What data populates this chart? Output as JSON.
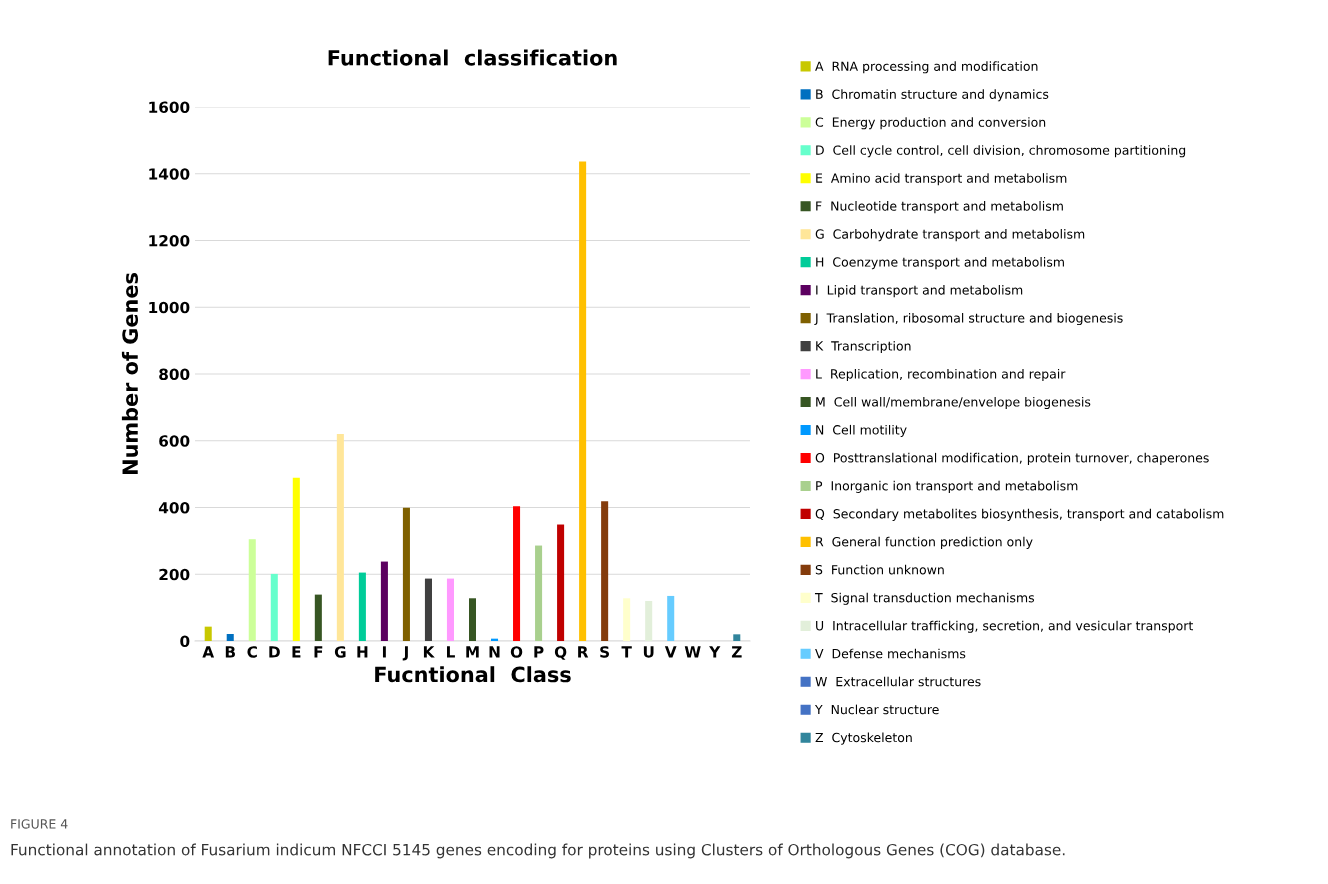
{
  "chart_data": {
    "type": "bar",
    "title": "Functional  classification",
    "xlabel": "Fucntional  Class",
    "ylabel": "Number of Genes",
    "categories": [
      "A",
      "B",
      "C",
      "D",
      "E",
      "F",
      "G",
      "H",
      "I",
      "J",
      "K",
      "L",
      "M",
      "N",
      "O",
      "P",
      "Q",
      "R",
      "S",
      "T",
      "U",
      "V",
      "W",
      "Y",
      "Z"
    ],
    "series": [
      {
        "name": "A  RNA processing and modification",
        "color": "#c8c800",
        "values": [
          43,
          null,
          null,
          null,
          null,
          null,
          null,
          null,
          null,
          null,
          null,
          null,
          null,
          null,
          null,
          null,
          null,
          null,
          null,
          null,
          null,
          null,
          null,
          null,
          null
        ]
      },
      {
        "name": "B  Chromatin structure and dynamics",
        "color": "#0070c0",
        "values": [
          null,
          21,
          null,
          null,
          null,
          null,
          null,
          null,
          null,
          null,
          null,
          null,
          null,
          null,
          null,
          null,
          null,
          null,
          null,
          null,
          null,
          null,
          null,
          null,
          null
        ]
      },
      {
        "name": "C  Energy production and conversion",
        "color": "#ccff99",
        "values": [
          null,
          null,
          305,
          null,
          null,
          null,
          null,
          null,
          null,
          null,
          null,
          null,
          null,
          null,
          null,
          null,
          null,
          null,
          null,
          null,
          null,
          null,
          null,
          null,
          null
        ]
      },
      {
        "name": "D  Cell cycle control, cell division, chromosome partitioning",
        "color": "#66ffcc",
        "values": [
          null,
          null,
          null,
          201,
          null,
          null,
          null,
          null,
          null,
          null,
          null,
          null,
          null,
          null,
          null,
          null,
          null,
          null,
          null,
          null,
          null,
          null,
          null,
          null,
          null
        ]
      },
      {
        "name": "E  Amino acid transport and metabolism",
        "color": "#ffff00",
        "values": [
          null,
          null,
          null,
          null,
          489,
          null,
          null,
          null,
          null,
          null,
          null,
          null,
          null,
          null,
          null,
          null,
          null,
          null,
          null,
          null,
          null,
          null,
          null,
          null,
          null
        ]
      },
      {
        "name": "F  Nucleotide transport and metabolism",
        "color": "#375623",
        "values": [
          null,
          null,
          null,
          null,
          null,
          139,
          null,
          null,
          null,
          null,
          null,
          null,
          null,
          null,
          null,
          null,
          null,
          null,
          null,
          null,
          null,
          null,
          null,
          null,
          null
        ]
      },
      {
        "name": "G  Carbohydrate transport and metabolism",
        "color": "#ffe699",
        "values": [
          null,
          null,
          null,
          null,
          null,
          null,
          620,
          null,
          null,
          null,
          null,
          null,
          null,
          null,
          null,
          null,
          null,
          null,
          null,
          null,
          null,
          null,
          null,
          null,
          null
        ]
      },
      {
        "name": "H  Coenzyme transport and metabolism",
        "color": "#00cc99",
        "values": [
          null,
          null,
          null,
          null,
          null,
          null,
          null,
          205,
          null,
          null,
          null,
          null,
          null,
          null,
          null,
          null,
          null,
          null,
          null,
          null,
          null,
          null,
          null,
          null,
          null
        ]
      },
      {
        "name": "I  Lipid transport and metabolism",
        "color": "#5c0060",
        "values": [
          null,
          null,
          null,
          null,
          null,
          null,
          null,
          null,
          238,
          null,
          null,
          null,
          null,
          null,
          null,
          null,
          null,
          null,
          null,
          null,
          null,
          null,
          null,
          null,
          null
        ]
      },
      {
        "name": "J  Translation, ribosomal structure and biogenesis",
        "color": "#7f6000",
        "values": [
          null,
          null,
          null,
          null,
          null,
          null,
          null,
          null,
          null,
          399,
          null,
          null,
          null,
          null,
          null,
          null,
          null,
          null,
          null,
          null,
          null,
          null,
          null,
          null,
          null
        ]
      },
      {
        "name": "K  Transcription",
        "color": "#404040",
        "values": [
          null,
          null,
          null,
          null,
          null,
          null,
          null,
          null,
          null,
          null,
          187,
          null,
          null,
          null,
          null,
          null,
          null,
          null,
          null,
          null,
          null,
          null,
          null,
          null,
          null
        ]
      },
      {
        "name": "L  Replication, recombination and repair",
        "color": "#ff99ff",
        "values": [
          null,
          null,
          null,
          null,
          null,
          null,
          null,
          null,
          null,
          null,
          null,
          187,
          null,
          null,
          null,
          null,
          null,
          null,
          null,
          null,
          null,
          null,
          null,
          null,
          null
        ]
      },
      {
        "name": "M  Cell wall/membrane/envelope biogenesis",
        "color": "#375623",
        "values": [
          null,
          null,
          null,
          null,
          null,
          null,
          null,
          null,
          null,
          null,
          null,
          null,
          128,
          null,
          null,
          null,
          null,
          null,
          null,
          null,
          null,
          null,
          null,
          null,
          null
        ]
      },
      {
        "name": "N  Cell motility",
        "color": "#0099ff",
        "values": [
          null,
          null,
          null,
          null,
          null,
          null,
          null,
          null,
          null,
          null,
          null,
          null,
          null,
          7,
          null,
          null,
          null,
          null,
          null,
          null,
          null,
          null,
          null,
          null,
          null
        ]
      },
      {
        "name": "O  Posttranslational modification, protein turnover, chaperones",
        "color": "#ff0000",
        "values": [
          null,
          null,
          null,
          null,
          null,
          null,
          null,
          null,
          null,
          null,
          null,
          null,
          null,
          null,
          404,
          null,
          null,
          null,
          null,
          null,
          null,
          null,
          null,
          null,
          null
        ]
      },
      {
        "name": "P  Inorganic ion transport and metabolism",
        "color": "#a9d08e",
        "values": [
          null,
          null,
          null,
          null,
          null,
          null,
          null,
          null,
          null,
          null,
          null,
          null,
          null,
          null,
          null,
          286,
          null,
          null,
          null,
          null,
          null,
          null,
          null,
          null,
          null
        ]
      },
      {
        "name": "Q  Secondary metabolites biosynthesis, transport and catabolism",
        "color": "#c00000",
        "values": [
          null,
          null,
          null,
          null,
          null,
          null,
          null,
          null,
          null,
          null,
          null,
          null,
          null,
          null,
          null,
          null,
          349,
          null,
          null,
          null,
          null,
          null,
          null,
          null,
          null
        ]
      },
      {
        "name": "R  General function prediction only",
        "color": "#ffc000",
        "values": [
          null,
          null,
          null,
          null,
          null,
          null,
          null,
          null,
          null,
          null,
          null,
          null,
          null,
          null,
          null,
          null,
          null,
          1437,
          null,
          null,
          null,
          null,
          null,
          null,
          null
        ]
      },
      {
        "name": "S  Function unknown",
        "color": "#843c0c",
        "values": [
          null,
          null,
          null,
          null,
          null,
          null,
          null,
          null,
          null,
          null,
          null,
          null,
          null,
          null,
          null,
          null,
          null,
          null,
          419,
          null,
          null,
          null,
          null,
          null,
          null
        ]
      },
      {
        "name": "T  Signal transduction mechanisms",
        "color": "#ffffcc",
        "values": [
          null,
          null,
          null,
          null,
          null,
          null,
          null,
          null,
          null,
          null,
          null,
          null,
          null,
          null,
          null,
          null,
          null,
          null,
          null,
          128,
          null,
          null,
          null,
          null,
          null
        ]
      },
      {
        "name": "U  Intracellular trafficking, secretion, and vesicular transport",
        "color": "#e2efda",
        "values": [
          null,
          null,
          null,
          null,
          null,
          null,
          null,
          null,
          null,
          null,
          null,
          null,
          null,
          null,
          null,
          null,
          null,
          null,
          null,
          null,
          120,
          null,
          null,
          null,
          null
        ]
      },
      {
        "name": "V  Defense mechanisms",
        "color": "#66ccff",
        "values": [
          null,
          null,
          null,
          null,
          null,
          null,
          null,
          null,
          null,
          null,
          null,
          null,
          null,
          null,
          null,
          null,
          null,
          null,
          null,
          null,
          null,
          135,
          null,
          null,
          null
        ]
      },
      {
        "name": "W  Extracellular structures",
        "color": "#4472c4",
        "values": [
          null,
          null,
          null,
          null,
          null,
          null,
          null,
          null,
          null,
          null,
          null,
          null,
          null,
          null,
          null,
          null,
          null,
          null,
          null,
          null,
          null,
          null,
          0,
          null,
          null
        ]
      },
      {
        "name": "Y  Nuclear structure",
        "color": "#4472c4",
        "values": [
          null,
          null,
          null,
          null,
          null,
          null,
          null,
          null,
          null,
          null,
          null,
          null,
          null,
          null,
          null,
          null,
          null,
          null,
          null,
          null,
          null,
          null,
          null,
          0,
          null
        ]
      },
      {
        "name": "Z  Cytoskeleton",
        "color": "#31859c",
        "values": [
          null,
          null,
          null,
          null,
          null,
          null,
          null,
          null,
          null,
          null,
          null,
          null,
          null,
          null,
          null,
          null,
          null,
          null,
          null,
          null,
          null,
          null,
          null,
          null,
          20
        ]
      }
    ],
    "ylim": [
      0,
      1600
    ],
    "yticks": [
      0,
      200,
      400,
      600,
      800,
      1000,
      1200,
      1400,
      1600
    ],
    "grid": "y",
    "legend": "right",
    "annotations": [
      "FIGURE 4",
      "Functional annotation of Fusarium indicum NFCCI 5145 genes encoding for proteins using Clusters of Orthologous Genes (COG) database."
    ]
  }
}
